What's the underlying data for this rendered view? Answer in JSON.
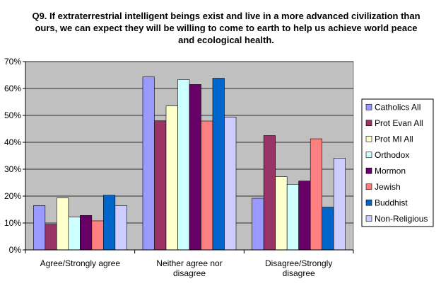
{
  "chart_data": {
    "type": "bar",
    "title": "Q9. If extraterrestrial intelligent beings exist and live in a more advanced civilization than ours, we can expect they will be willing to come to earth to help us achieve world peace and ecological health.",
    "categories": [
      "Agree/Strongly agree",
      "Neither agree nor disagree",
      "Disagree/Strongly disagree"
    ],
    "category_lines": [
      [
        "Agree/Strongly agree"
      ],
      [
        "Neither agree nor",
        "disagree"
      ],
      [
        "Disagree/Strongly",
        "disagree"
      ]
    ],
    "y_ticks": [
      "0%",
      "10%",
      "20%",
      "30%",
      "40%",
      "50%",
      "60%",
      "70%"
    ],
    "ylim": [
      0,
      70
    ],
    "grid": true,
    "legend_position": "right",
    "series": [
      {
        "name": "Catholics All",
        "color": "#9999ff",
        "values": [
          16.5,
          64.3,
          19.2
        ]
      },
      {
        "name": "Prot Evan All",
        "color": "#993366",
        "values": [
          9.5,
          48.0,
          42.5
        ]
      },
      {
        "name": "Prot MI All",
        "color": "#ffffcc",
        "values": [
          19.3,
          53.5,
          27.2
        ]
      },
      {
        "name": "Orthodox",
        "color": "#ccffff",
        "values": [
          12.2,
          63.3,
          24.4
        ]
      },
      {
        "name": "Mormon",
        "color": "#660066",
        "values": [
          12.8,
          61.5,
          25.6
        ]
      },
      {
        "name": "Jewish",
        "color": "#ff8080",
        "values": [
          10.8,
          47.9,
          41.3
        ]
      },
      {
        "name": "Buddhist",
        "color": "#0066cc",
        "values": [
          20.3,
          63.8,
          15.9
        ]
      },
      {
        "name": "Non-Religious",
        "color": "#ccccff",
        "values": [
          16.5,
          49.4,
          34.1
        ]
      }
    ]
  }
}
